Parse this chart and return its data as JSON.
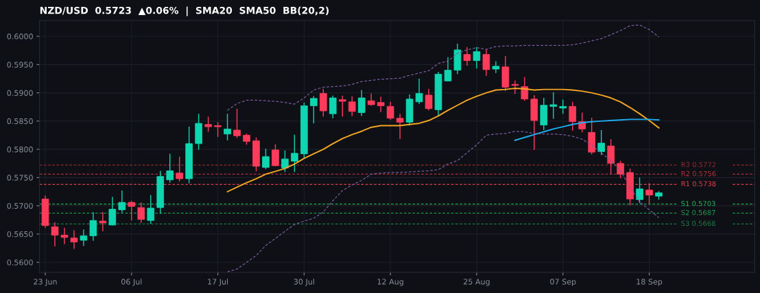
{
  "chart_data": {
    "type": "candlestick",
    "title": "NZD/USD  0.5723  ▲0.06%  |  SMA20  SMA50  BB(20,2)",
    "categories": [
      "23 Jun",
      null,
      null,
      null,
      null,
      null,
      null,
      null,
      null,
      "06 Jul",
      null,
      null,
      null,
      null,
      null,
      null,
      null,
      null,
      "17 Jul",
      null,
      null,
      null,
      null,
      null,
      null,
      null,
      null,
      "30 Jul",
      null,
      null,
      null,
      null,
      null,
      null,
      null,
      null,
      "12 Aug",
      null,
      null,
      null,
      null,
      null,
      null,
      null,
      null,
      "25 Aug",
      null,
      null,
      null,
      null,
      null,
      null,
      null,
      null,
      "07 Sep",
      null,
      null,
      null,
      null,
      null,
      null,
      null,
      null,
      "18 Sep",
      null
    ],
    "ohlc": [
      [
        0.5712,
        0.5718,
        0.5661,
        0.5665
      ],
      [
        0.5663,
        0.5671,
        0.5628,
        0.5648
      ],
      [
        0.5648,
        0.5661,
        0.5632,
        0.5644
      ],
      [
        0.5643,
        0.5657,
        0.5624,
        0.5636
      ],
      [
        0.5639,
        0.5658,
        0.5629,
        0.5647
      ],
      [
        0.5647,
        0.5689,
        0.5638,
        0.5674
      ],
      [
        0.5673,
        0.5689,
        0.5655,
        0.567
      ],
      [
        0.5666,
        0.5716,
        0.5665,
        0.5694
      ],
      [
        0.5693,
        0.5727,
        0.5688,
        0.5706
      ],
      [
        0.5706,
        0.5709,
        0.5674,
        0.5699
      ],
      [
        0.5697,
        0.5706,
        0.567,
        0.5676
      ],
      [
        0.5674,
        0.5719,
        0.5668,
        0.5696
      ],
      [
        0.5697,
        0.5762,
        0.5686,
        0.5752
      ],
      [
        0.5746,
        0.5792,
        0.5741,
        0.5762
      ],
      [
        0.5758,
        0.5787,
        0.5743,
        0.5748
      ],
      [
        0.5748,
        0.584,
        0.574,
        0.581
      ],
      [
        0.581,
        0.5863,
        0.5799,
        0.5846
      ],
      [
        0.5844,
        0.5858,
        0.5831,
        0.584
      ],
      [
        0.5842,
        0.5848,
        0.5822,
        0.584
      ],
      [
        0.5827,
        0.5863,
        0.5816,
        0.5836
      ],
      [
        0.5834,
        0.5872,
        0.582,
        0.5824
      ],
      [
        0.5825,
        0.5828,
        0.5808,
        0.5814
      ],
      [
        0.5815,
        0.5821,
        0.5761,
        0.577
      ],
      [
        0.5768,
        0.5801,
        0.5765,
        0.5787
      ],
      [
        0.5799,
        0.5809,
        0.577,
        0.5771
      ],
      [
        0.5767,
        0.5798,
        0.576,
        0.5783
      ],
      [
        0.5779,
        0.5826,
        0.576,
        0.5793
      ],
      [
        0.5792,
        0.5883,
        0.5784,
        0.5877
      ],
      [
        0.5877,
        0.5894,
        0.5846,
        0.589
      ],
      [
        0.5899,
        0.5907,
        0.5858,
        0.5868
      ],
      [
        0.5863,
        0.5895,
        0.5855,
        0.5891
      ],
      [
        0.5888,
        0.5895,
        0.5858,
        0.5885
      ],
      [
        0.5884,
        0.5894,
        0.5859,
        0.5867
      ],
      [
        0.5865,
        0.5905,
        0.5859,
        0.5891
      ],
      [
        0.5886,
        0.5899,
        0.5877,
        0.5879
      ],
      [
        0.5883,
        0.5893,
        0.5866,
        0.5877
      ],
      [
        0.5876,
        0.5884,
        0.5852,
        0.5855
      ],
      [
        0.5855,
        0.5863,
        0.5818,
        0.5848
      ],
      [
        0.5848,
        0.5897,
        0.5842,
        0.5889
      ],
      [
        0.5884,
        0.5925,
        0.588,
        0.5899
      ],
      [
        0.5896,
        0.5907,
        0.5869,
        0.5872
      ],
      [
        0.587,
        0.5937,
        0.5859,
        0.5933
      ],
      [
        0.5921,
        0.5963,
        0.592,
        0.594
      ],
      [
        0.594,
        0.5987,
        0.5933,
        0.5976
      ],
      [
        0.5968,
        0.5981,
        0.5948,
        0.5957
      ],
      [
        0.5957,
        0.5981,
        0.5943,
        0.5973
      ],
      [
        0.5968,
        0.5977,
        0.593,
        0.5941
      ],
      [
        0.5942,
        0.5956,
        0.5935,
        0.5947
      ],
      [
        0.5946,
        0.5965,
        0.5903,
        0.591
      ],
      [
        0.5915,
        0.5922,
        0.5898,
        0.5913
      ],
      [
        0.5911,
        0.5928,
        0.5886,
        0.5889
      ],
      [
        0.5889,
        0.5896,
        0.5799,
        0.5851
      ],
      [
        0.5843,
        0.5891,
        0.5834,
        0.5878
      ],
      [
        0.5876,
        0.5901,
        0.5854,
        0.5879
      ],
      [
        0.5873,
        0.5888,
        0.5863,
        0.5876
      ],
      [
        0.5876,
        0.5884,
        0.5833,
        0.5849
      ],
      [
        0.5849,
        0.5865,
        0.583,
        0.5836
      ],
      [
        0.583,
        0.5856,
        0.5791,
        0.5795
      ],
      [
        0.5796,
        0.5834,
        0.579,
        0.5811
      ],
      [
        0.5806,
        0.5818,
        0.5756,
        0.5775
      ],
      [
        0.5775,
        0.578,
        0.5749,
        0.5756
      ],
      [
        0.5759,
        0.5766,
        0.5701,
        0.5712
      ],
      [
        0.5711,
        0.575,
        0.5705,
        0.573
      ],
      [
        0.5728,
        0.574,
        0.5704,
        0.5719
      ],
      [
        0.5717,
        0.5726,
        0.5711,
        0.5723
      ]
    ],
    "colors": [
      "#ff3b5c",
      "#ff3b5c",
      "#ff3b5c",
      "#ff3b5c",
      "#0fd6b0",
      "#0fd6b0",
      "#ff3b5c",
      "#0fd6b0",
      "#0fd6b0",
      "#ff3b5c",
      "#ff3b5c",
      "#0fd6b0",
      "#0fd6b0",
      "#0fd6b0",
      "#ff3b5c",
      "#0fd6b0",
      "#0fd6b0",
      "#ff3b5c",
      "#ff3b5c",
      "#0fd6b0",
      "#ff3b5c",
      "#ff3b5c",
      "#ff3b5c",
      "#0fd6b0",
      "#ff3b5c",
      "#0fd6b0",
      "#0fd6b0",
      "#0fd6b0",
      "#0fd6b0",
      "#ff3b5c",
      "#0fd6b0",
      "#ff3b5c",
      "#ff3b5c",
      "#0fd6b0",
      "#ff3b5c",
      "#ff3b5c",
      "#ff3b5c",
      "#ff3b5c",
      "#0fd6b0",
      "#0fd6b0",
      "#ff3b5c",
      "#0fd6b0",
      "#0fd6b0",
      "#0fd6b0",
      "#ff3b5c",
      "#0fd6b0",
      "#ff3b5c",
      "#0fd6b0",
      "#ff3b5c",
      "#ff3b5c",
      "#ff3b5c",
      "#ff3b5c",
      "#0fd6b0",
      "#0fd6b0",
      "#0fd6b0",
      "#ff3b5c",
      "#ff3b5c",
      "#ff3b5c",
      "#0fd6b0",
      "#ff3b5c",
      "#ff3b5c",
      "#ff3b5c",
      "#0fd6b0",
      "#ff3b5c",
      "#0fd6b0"
    ],
    "series": [
      {
        "type": "line",
        "color": "#f5a623",
        "line_style": "solid",
        "values": [
          null,
          null,
          null,
          null,
          null,
          null,
          null,
          null,
          null,
          null,
          null,
          null,
          null,
          null,
          null,
          null,
          null,
          null,
          null,
          0.5725,
          0.5733,
          0.5741,
          0.5748,
          0.5756,
          0.5761,
          0.5766,
          0.5774,
          0.5784,
          0.5792,
          0.58,
          0.581,
          0.5819,
          0.5826,
          0.5832,
          0.5839,
          0.5842,
          0.5842,
          0.5842,
          0.5844,
          0.5846,
          0.5851,
          0.5859,
          0.5869,
          0.5878,
          0.5887,
          0.5894,
          0.59,
          0.5905,
          0.5906,
          0.5908,
          0.5907,
          0.5905,
          0.5906,
          0.5906,
          0.5906,
          0.5905,
          0.5903,
          0.59,
          0.5896,
          0.5891,
          0.5884,
          0.5874,
          0.5863,
          0.5851,
          0.5838
        ]
      },
      {
        "type": "line",
        "color": "#1eaef0",
        "line_style": "solid",
        "values": [
          null,
          null,
          null,
          null,
          null,
          null,
          null,
          null,
          null,
          null,
          null,
          null,
          null,
          null,
          null,
          null,
          null,
          null,
          null,
          null,
          null,
          null,
          null,
          null,
          null,
          null,
          null,
          null,
          null,
          null,
          null,
          null,
          null,
          null,
          null,
          null,
          null,
          null,
          null,
          null,
          null,
          null,
          null,
          null,
          null,
          null,
          null,
          null,
          null,
          0.5816,
          0.5821,
          0.5826,
          0.5831,
          0.5836,
          0.584,
          0.5844,
          0.5847,
          0.5849,
          0.585,
          0.5851,
          0.5852,
          0.5853,
          0.5853,
          0.5853,
          0.5852
        ]
      },
      {
        "type": "line",
        "color": "#7a5a9e",
        "line_style": "dashed",
        "values": [
          null,
          null,
          null,
          null,
          null,
          null,
          null,
          null,
          null,
          null,
          null,
          null,
          null,
          null,
          null,
          null,
          null,
          null,
          null,
          0.5869,
          0.5881,
          0.5887,
          0.5887,
          0.5886,
          0.5885,
          0.5883,
          0.588,
          0.5891,
          0.5905,
          0.591,
          0.5911,
          0.5912,
          0.5915,
          0.592,
          0.5922,
          0.5924,
          0.5925,
          0.5926,
          0.5931,
          0.5935,
          0.5939,
          0.5952,
          0.5956,
          0.597,
          0.5976,
          0.598,
          0.5977,
          0.5982,
          0.5983,
          0.5983,
          0.5984,
          0.5984,
          0.5984,
          0.5984,
          0.5984,
          0.5985,
          0.5988,
          0.5992,
          0.5996,
          0.6003,
          0.601,
          0.6019,
          0.602,
          0.6012,
          0.5999
        ]
      },
      {
        "type": "line",
        "color": "#7a5a9e",
        "line_style": "dashed",
        "values": [
          null,
          null,
          null,
          null,
          null,
          null,
          null,
          null,
          null,
          null,
          null,
          null,
          null,
          null,
          null,
          null,
          null,
          null,
          null,
          0.5583,
          0.5588,
          0.56,
          0.5612,
          0.563,
          0.5642,
          0.5655,
          0.5667,
          0.5673,
          0.5678,
          0.5689,
          0.5709,
          0.5727,
          0.5737,
          0.5745,
          0.5756,
          0.5758,
          0.5759,
          0.5759,
          0.576,
          0.5761,
          0.5762,
          0.5764,
          0.5774,
          0.578,
          0.5794,
          0.5808,
          0.5825,
          0.5827,
          0.5828,
          0.5832,
          0.5831,
          0.5828,
          0.5827,
          0.5827,
          0.5826,
          0.5823,
          0.5818,
          0.5807,
          0.5794,
          0.578,
          0.5762,
          0.5733,
          0.5707,
          0.5693,
          0.5679
        ]
      }
    ],
    "ref_lines": [
      {
        "axis": "y",
        "value": 0.5772,
        "label": "R3 0.5772",
        "color": "#8e2a30",
        "line_style": "dashed"
      },
      {
        "axis": "y",
        "value": 0.5756,
        "label": "R2 0.5756",
        "color": "#b32e38",
        "line_style": "dashed"
      },
      {
        "axis": "y",
        "value": 0.5738,
        "label": "R1 0.5738",
        "color": "#d8404a",
        "line_style": "dashed"
      },
      {
        "axis": "y",
        "value": 0.5703,
        "label": "S1 0.5703",
        "color": "#26b05a",
        "line_style": "dashed"
      },
      {
        "axis": "y",
        "value": 0.5687,
        "label": "S2 0.5687",
        "color": "#1f9450",
        "line_style": "dashed"
      },
      {
        "axis": "y",
        "value": 0.5668,
        "label": "S3 0.5668",
        "color": "#1a7a44",
        "line_style": "dashed"
      }
    ],
    "ylim": [
      0.5582,
      0.6028
    ],
    "yticks": [
      {
        "value": 0.56,
        "label": "0.5600"
      },
      {
        "value": 0.565,
        "label": "0.5650"
      },
      {
        "value": 0.57,
        "label": "0.5700"
      },
      {
        "value": 0.575,
        "label": "0.5750"
      },
      {
        "value": 0.58,
        "label": "0.5800"
      },
      {
        "value": 0.585,
        "label": "0.5850"
      },
      {
        "value": 0.59,
        "label": "0.5900"
      },
      {
        "value": 0.595,
        "label": "0.5950"
      },
      {
        "value": 0.6,
        "label": "0.6000"
      }
    ],
    "grid": true
  }
}
